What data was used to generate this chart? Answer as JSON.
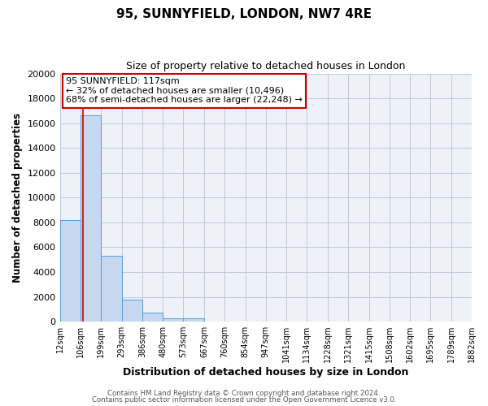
{
  "title": "95, SUNNYFIELD, LONDON, NW7 4RE",
  "subtitle": "Size of property relative to detached houses in London",
  "xlabel": "Distribution of detached houses by size in London",
  "ylabel": "Number of detached properties",
  "bar_categories": [
    "12sqm",
    "106sqm",
    "199sqm",
    "293sqm",
    "386sqm",
    "480sqm",
    "573sqm",
    "667sqm",
    "760sqm",
    "854sqm",
    "947sqm",
    "1041sqm",
    "1134sqm",
    "1228sqm",
    "1321sqm",
    "1415sqm",
    "1508sqm",
    "1602sqm",
    "1695sqm",
    "1789sqm",
    "1882sqm"
  ],
  "bar_values": [
    8200,
    16600,
    5300,
    1800,
    750,
    300,
    300,
    0,
    0,
    0,
    0,
    0,
    0,
    0,
    0,
    0,
    0,
    0,
    0,
    0,
    0
  ],
  "bar_color": "#c5d8f0",
  "bar_edgecolor": "#5b9bd5",
  "annotation_line1": "95 SUNNYFIELD: 117sqm",
  "annotation_line2": "← 32% of detached houses are smaller (10,496)",
  "annotation_line3": "68% of semi-detached houses are larger (22,248) →",
  "vline_x": 117,
  "vline_color": "#cc0000",
  "ylim": [
    0,
    20000
  ],
  "yticks": [
    0,
    2000,
    4000,
    6000,
    8000,
    10000,
    12000,
    14000,
    16000,
    18000,
    20000
  ],
  "grid_color": "#c0c8d8",
  "bg_color": "#eef2f8",
  "footer_line1": "Contains HM Land Registry data © Crown copyright and database right 2024.",
  "footer_line2": "Contains public sector information licensed under the Open Government Licence v3.0.",
  "bin_edges": [
    12,
    106,
    199,
    293,
    386,
    480,
    573,
    667,
    760,
    854,
    947,
    1041,
    1134,
    1228,
    1321,
    1415,
    1508,
    1602,
    1695,
    1789,
    1882
  ]
}
